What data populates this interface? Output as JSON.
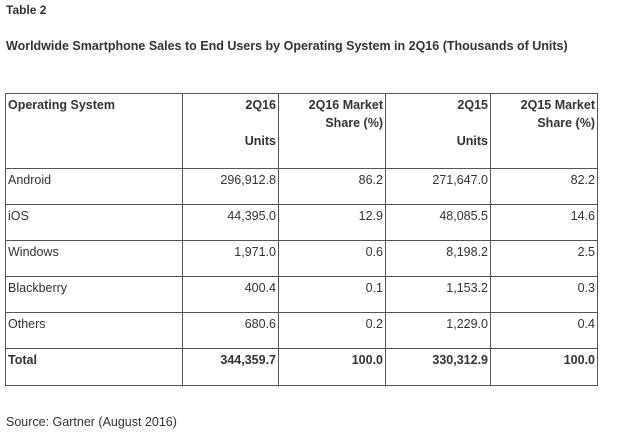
{
  "caption": "Table 2",
  "heading": "Worldwide Smartphone Sales to End Users by Operating System in 2Q16 (Thousands of Units)",
  "columns": {
    "os": "Operating System",
    "units_2q16_line1": "2Q16",
    "units_2q16_line2": "Units",
    "share_2q16_line1": "2Q16 Market",
    "share_2q16_line2": "Share (%)",
    "units_2q15_line1": "2Q15",
    "units_2q15_line2": "Units",
    "share_2q15_line1": "2Q15 Market",
    "share_2q15_line2": "Share (%)"
  },
  "rows": [
    {
      "os": "Android",
      "units_2q16": "296,912.8",
      "share_2q16": "86.2",
      "units_2q15": "271,647.0",
      "share_2q15": "82.2"
    },
    {
      "os": "iOS",
      "units_2q16": "44,395.0",
      "share_2q16": "12.9",
      "units_2q15": "48,085.5",
      "share_2q15": "14.6"
    },
    {
      "os": "Windows",
      "units_2q16": "1,971.0",
      "share_2q16": "0.6",
      "units_2q15": "8,198.2",
      "share_2q15": "2.5"
    },
    {
      "os": "Blackberry",
      "units_2q16": "400.4",
      "share_2q16": "0.1",
      "units_2q15": "1,153.2",
      "share_2q15": "0.3"
    },
    {
      "os": "Others",
      "units_2q16": "680.6",
      "share_2q16": "0.2",
      "units_2q15": "1,229.0",
      "share_2q15": "0.4"
    }
  ],
  "total": {
    "os": "Total",
    "units_2q16": "344,359.7",
    "share_2q16": "100.0",
    "units_2q15": "330,312.9",
    "share_2q15": "100.0"
  },
  "source": "Source: Gartner (August 2016)"
}
